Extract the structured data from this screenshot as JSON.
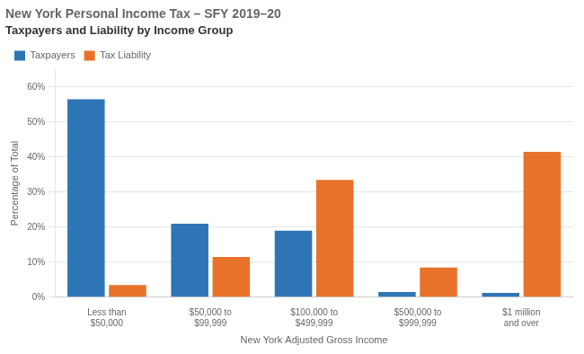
{
  "chart_data": {
    "type": "bar",
    "title": "New York Personal Income Tax – SFY 2019–20",
    "subtitle": "Taxpayers and Liability by Income Group",
    "categories": [
      "Less than\n$50,000",
      "$50,000 to\n$99,999",
      "$100,000 to\n$499,999",
      "$500,000 to\n$999,999",
      "$1 million\nand over"
    ],
    "series": [
      {
        "name": "Taxpayers",
        "color": "#2E75B6",
        "values": [
          56.5,
          21.0,
          19.0,
          1.5,
          1.2
        ]
      },
      {
        "name": "Tax Liability",
        "color": "#E8722A",
        "values": [
          3.5,
          11.5,
          33.5,
          8.5,
          41.5
        ]
      }
    ],
    "xlabel": "New York Adjusted Gross Income",
    "ylabel": "Percentage of Total",
    "ylim": [
      0,
      65
    ],
    "yticks": [
      {
        "value": 0,
        "label": "0%"
      },
      {
        "value": 10,
        "label": "10%"
      },
      {
        "value": 20,
        "label": "20%"
      },
      {
        "value": 30,
        "label": "30%"
      },
      {
        "value": 40,
        "label": "40%"
      },
      {
        "value": 50,
        "label": "50%"
      },
      {
        "value": 60,
        "label": "60%"
      }
    ],
    "grid": true,
    "legend": "upper left"
  }
}
